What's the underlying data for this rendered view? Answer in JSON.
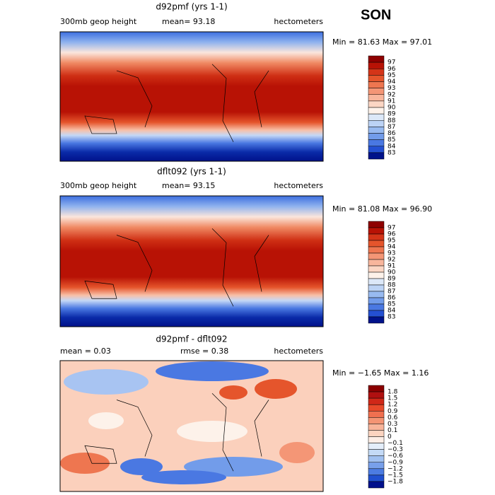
{
  "title": "SON",
  "panels": [
    {
      "title": "d92pmf (yrs 1-1)",
      "left": "300mb geop height",
      "center": "mean=  93.18",
      "right": "hectometers",
      "minmax": "Min =  81.63 Max =  97.01",
      "colorbar": {
        "labels": [
          "97",
          "96",
          "95",
          "94",
          "93",
          "92",
          "91",
          "90",
          "89",
          "88",
          "87",
          "86",
          "85",
          "84",
          "83"
        ],
        "colors": [
          "#8e0000",
          "#b81205",
          "#d43418",
          "#e5552c",
          "#ee7650",
          "#f49676",
          "#f8b69c",
          "#fbd6c4",
          "#fdf2ea",
          "#dce8f8",
          "#bcd3f5",
          "#98baf0",
          "#729cea",
          "#4a78e2",
          "#2450d2",
          "#00128a"
        ]
      }
    },
    {
      "title": "dflt092 (yrs 1-1)",
      "left": "300mb geop height",
      "center": "mean=  93.15",
      "right": "hectometers",
      "minmax": "Min =  81.08 Max =  96.90",
      "colorbar": {
        "labels": [
          "97",
          "96",
          "95",
          "94",
          "93",
          "92",
          "91",
          "90",
          "89",
          "88",
          "87",
          "86",
          "85",
          "84",
          "83"
        ],
        "colors": [
          "#8e0000",
          "#b81205",
          "#d43418",
          "#e5552c",
          "#ee7650",
          "#f49676",
          "#f8b69c",
          "#fbd6c4",
          "#fdf2ea",
          "#dce8f8",
          "#bcd3f5",
          "#98baf0",
          "#729cea",
          "#4a78e2",
          "#2450d2",
          "#00128a"
        ]
      }
    },
    {
      "title": "d92pmf - dflt092",
      "left": "mean =    0.03",
      "center": "rmse =    0.38",
      "right": "hectometers",
      "minmax": "Min =  −1.65 Max =   1.16",
      "colorbar": {
        "labels": [
          "1.8",
          "1.5",
          "1.2",
          "0.9",
          "0.6",
          "0.3",
          "0.1",
          "0",
          "−0.1",
          "−0.3",
          "−0.6",
          "−0.9",
          "−1.2",
          "−1.5",
          "−1.8"
        ],
        "colors": [
          "#8b0000",
          "#b01010",
          "#d02818",
          "#e84a2a",
          "#f07050",
          "#f49474",
          "#f8b49a",
          "#fcd4c0",
          "#fdeee6",
          "#e4eefa",
          "#c4daf6",
          "#a0c0f0",
          "#78a0ea",
          "#4c7ce2",
          "#2050d0",
          "#00108c"
        ]
      }
    }
  ]
}
